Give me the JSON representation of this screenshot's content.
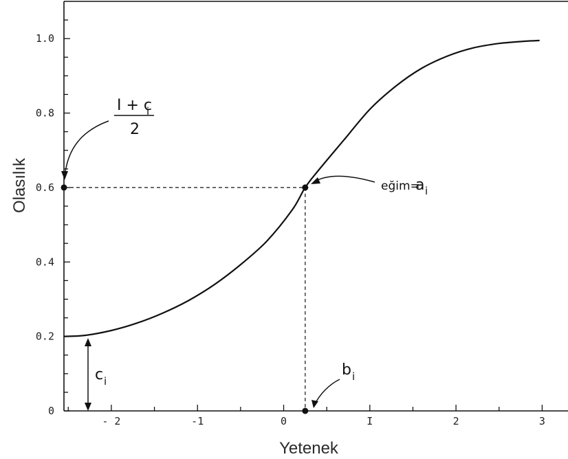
{
  "chart_data": {
    "type": "line",
    "xlabel": "Yetenek",
    "ylabel": "Olasılık",
    "xlim": [
      -2.55,
      3.3
    ],
    "ylim": [
      0,
      1.1
    ],
    "xticks": [
      -2,
      -1,
      0,
      1,
      2,
      3
    ],
    "xtick_labels": [
      "- 2",
      "-1",
      "0",
      "I",
      "2",
      "3"
    ],
    "yticks": [
      0,
      0.2,
      0.4,
      0.6,
      0.8,
      1.0
    ],
    "ytick_labels": [
      "0",
      "0.2",
      "0.4",
      "0.6",
      "0.8",
      "1.0"
    ],
    "grid": false,
    "curve": {
      "x": [
        -2.55,
        -2.3,
        -2.0,
        -1.7,
        -1.4,
        -1.1,
        -0.8,
        -0.5,
        -0.2,
        0.1,
        0.25,
        0.4,
        0.7,
        1.0,
        1.3,
        1.6,
        1.9,
        2.2,
        2.5,
        2.8,
        2.97
      ],
      "y": [
        0.2,
        0.203,
        0.216,
        0.236,
        0.263,
        0.297,
        0.34,
        0.393,
        0.455,
        0.54,
        0.6,
        0.645,
        0.728,
        0.81,
        0.872,
        0.92,
        0.953,
        0.975,
        0.987,
        0.993,
        0.995
      ]
    },
    "points": [
      {
        "x": -2.55,
        "y": 0.6
      },
      {
        "x": 0.25,
        "y": 0.6
      },
      {
        "x": 0.25,
        "y": 0
      }
    ],
    "annotations": {
      "asymptote_top": "I + c",
      "asymptote_top_sub": "i",
      "asymptote_bottom": "2",
      "slope_prefix": "eğim=",
      "slope_symbol": "a",
      "slope_sub": "i",
      "difficulty": "b",
      "difficulty_sub": "i",
      "guessing": "c",
      "guessing_sub": "i"
    }
  }
}
